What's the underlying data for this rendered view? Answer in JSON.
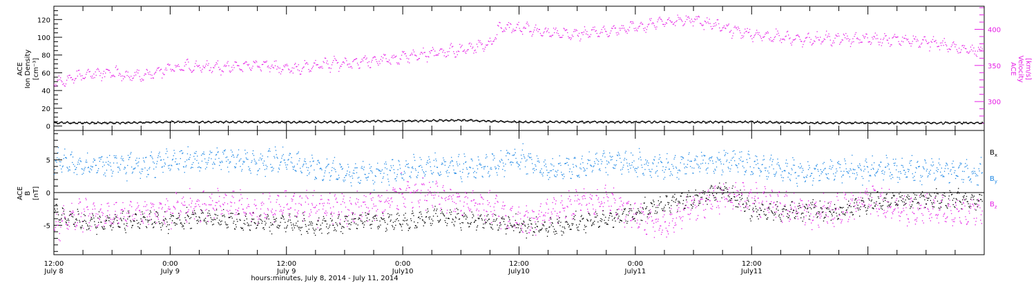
{
  "colors": {
    "density": "#000000",
    "velocity": "#e61ee6",
    "bx": "#000000",
    "by": "#1e88e5",
    "bz": "#e61ee6"
  },
  "chart_data": [
    {
      "type": "scatter",
      "panel": "top",
      "ylabel_left": [
        "ACE",
        "Ion Density",
        "[cm⁻³]"
      ],
      "ylabel_right": [
        "ACE",
        "Velocity",
        "[km/s]"
      ],
      "x_unit": "hours from 12:00 July 8, 2014",
      "xlim": [
        0,
        96
      ],
      "ylim_left": [
        -5,
        135
      ],
      "yticks_left": [
        "0",
        "20",
        "40",
        "60",
        "80",
        "100",
        "120"
      ],
      "ylim_right": [
        260,
        432
      ],
      "yticks_right": [
        "300",
        "350",
        "400"
      ],
      "series": [
        {
          "axis": "left",
          "color": "#000000",
          "x": [
            0,
            6,
            12,
            18,
            24,
            30,
            33,
            36,
            42,
            48,
            54,
            60,
            66,
            72,
            78,
            84,
            90,
            96
          ],
          "y": [
            4,
            4,
            5,
            5,
            5,
            5,
            6,
            6,
            7,
            5,
            5,
            5,
            5,
            5,
            4,
            4,
            4,
            4
          ]
        },
        {
          "axis": "right",
          "color": "#e61ee6",
          "x": [
            0,
            3,
            6,
            9,
            12,
            15,
            18,
            21,
            24,
            27,
            30,
            33,
            36,
            39,
            42,
            45,
            46,
            48,
            51,
            54,
            57,
            60,
            63,
            66,
            69,
            72,
            75,
            78,
            81,
            84,
            87,
            90,
            93,
            96
          ],
          "y": [
            325,
            338,
            340,
            335,
            346,
            350,
            347,
            352,
            346,
            350,
            354,
            357,
            362,
            368,
            372,
            380,
            403,
            402,
            395,
            393,
            398,
            404,
            412,
            414,
            403,
            392,
            390,
            386,
            388,
            387,
            387,
            383,
            375,
            370
          ]
        }
      ]
    },
    {
      "type": "scatter",
      "panel": "bottom",
      "ylabel_left": [
        "ACE",
        "B",
        "[nT]"
      ],
      "x_unit": "hours from 12:00 July 8, 2014",
      "xlim": [
        0,
        96
      ],
      "ylim": [
        -9.5,
        9.5
      ],
      "yticks": [
        "-5",
        "0",
        "5"
      ],
      "zero_line": true,
      "legend": [
        {
          "label": "B",
          "sub": "x",
          "color": "#000000"
        },
        {
          "label": "B",
          "sub": "y",
          "color": "#1e88e5"
        },
        {
          "label": "B",
          "sub": "z",
          "color": "#e61ee6"
        }
      ],
      "series": [
        {
          "color": "#000000",
          "x": [
            0,
            3,
            6,
            9,
            12,
            15,
            18,
            21,
            24,
            27,
            30,
            33,
            36,
            39,
            42,
            45,
            48,
            51,
            54,
            57,
            60,
            63,
            66,
            69,
            72,
            75,
            78,
            81,
            84,
            87,
            90,
            93,
            96
          ],
          "y": [
            -3,
            -4.5,
            -4.5,
            -4,
            -4.5,
            -3.5,
            -4.2,
            -4.5,
            -4.5,
            -5,
            -4.5,
            -4,
            -4.5,
            -3.5,
            -4,
            -4.5,
            -5,
            -5.5,
            -4.5,
            -4,
            -3,
            -1.5,
            -1,
            0.5,
            -2.5,
            -3,
            -2.5,
            -3,
            -1.5,
            -1,
            -1,
            -1,
            -1
          ]
        },
        {
          "color": "#1e88e5",
          "x": [
            0,
            3,
            6,
            9,
            12,
            15,
            18,
            21,
            24,
            27,
            30,
            33,
            36,
            39,
            42,
            45,
            48,
            51,
            54,
            57,
            60,
            63,
            66,
            69,
            72,
            75,
            78,
            81,
            84,
            87,
            90,
            93,
            96
          ],
          "y": [
            5,
            4,
            4.5,
            4,
            5,
            5,
            5.5,
            4.5,
            5,
            4,
            3,
            3,
            3.5,
            4,
            4,
            4,
            5.5,
            3.5,
            4,
            5,
            4.5,
            4,
            4.5,
            5,
            4.5,
            3.5,
            3,
            3.5,
            3.5,
            3.5,
            3.5,
            3.5,
            3
          ]
        },
        {
          "color": "#e61ee6",
          "x": [
            0,
            3,
            6,
            9,
            12,
            15,
            18,
            21,
            24,
            27,
            30,
            33,
            36,
            39,
            42,
            45,
            48,
            51,
            54,
            57,
            60,
            63,
            66,
            69,
            72,
            75,
            78,
            81,
            84,
            87,
            90,
            93,
            96
          ],
          "y": [
            -5,
            -3,
            -3.5,
            -3,
            -2.5,
            -2,
            -1.5,
            -3,
            -1.5,
            -2,
            -2.5,
            -2,
            0,
            0,
            -1.5,
            -2,
            -4.5,
            -3,
            -1.5,
            -1,
            -3.5,
            -5,
            -2,
            -0.5,
            -0.5,
            -2,
            -3,
            -2.5,
            -1,
            -2.5,
            -2.5,
            -3,
            -2.5
          ]
        }
      ],
      "x_ticks": [
        {
          "time": "12:00",
          "date": "July 8"
        },
        {
          "time": "0:00",
          "date": "July 9"
        },
        {
          "time": "12:00",
          "date": "July 9"
        },
        {
          "time": "0:00",
          "date": "July10"
        },
        {
          "time": "12:00",
          "date": "July10"
        },
        {
          "time": "0:00",
          "date": "July11"
        },
        {
          "time": "12:00",
          "date": "July11"
        }
      ],
      "xlabel": "hours:minutes, July  8, 2014 - July 11, 2014"
    }
  ]
}
